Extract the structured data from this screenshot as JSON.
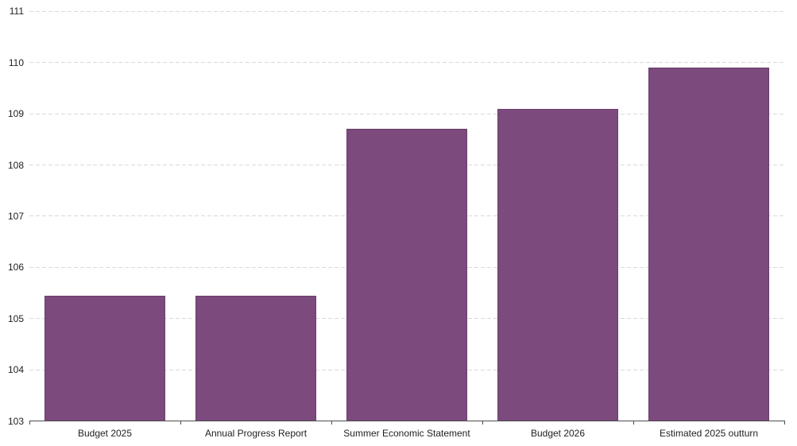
{
  "chart_data": {
    "type": "bar",
    "title": "",
    "xlabel": "",
    "ylabel": "",
    "categories": [
      "Budget 2025",
      "Annual Progress Report",
      "Summer Economic Statement",
      "Budget 2026",
      "Estimated 2025 outturn"
    ],
    "values": [
      105.45,
      105.45,
      108.7,
      109.1,
      109.9
    ],
    "ylim": [
      103,
      111
    ],
    "yticks": [
      103,
      104,
      105,
      106,
      107,
      108,
      109,
      110,
      111
    ],
    "grid": "horizontal-dashed",
    "legend": "none",
    "colors": {
      "bar_fill": "#7C4A7D",
      "bar_border": "#6B3E6C",
      "gridline": "#D9D9D9",
      "axis_line": "#4D4D4D",
      "text": "#1F1F1F",
      "background": "#FFFFFF"
    }
  }
}
